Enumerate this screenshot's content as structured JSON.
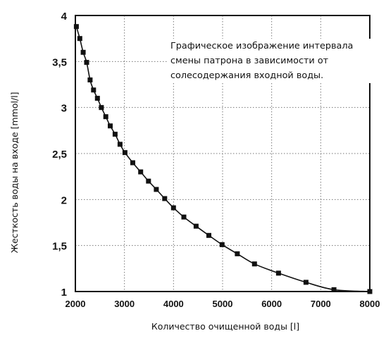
{
  "chart_data": {
    "type": "line",
    "title": "",
    "annotation": "Графическое изображение интервала смены патрона в зависимости от солесодержания входной воды.",
    "xlabel": "Количество очищенной воды [l]",
    "ylabel": "Жесткость воды на входе [mmol/l]",
    "xlim": [
      2000,
      8000
    ],
    "ylim": [
      1,
      4
    ],
    "x_ticks": [
      2000,
      3000,
      4000,
      5000,
      6000,
      7000,
      8000
    ],
    "x_tick_labels": [
      "2000",
      "3000",
      "4000",
      "5000",
      "6000",
      "7000",
      "8000"
    ],
    "y_ticks": [
      1,
      1.5,
      2,
      2.5,
      3,
      3.5,
      4
    ],
    "y_tick_labels": [
      "1",
      "1,5",
      "2",
      "2,5",
      "3",
      "3,5",
      "4"
    ],
    "grid": "dotted",
    "series": [
      {
        "marker": "square",
        "x": [
          2020,
          2090,
          2160,
          2230,
          2300,
          2370,
          2450,
          2530,
          2620,
          2710,
          2810,
          2910,
          3010,
          3170,
          3330,
          3490,
          3650,
          3820,
          4000,
          4210,
          4460,
          4720,
          4990,
          5300,
          5650,
          6140,
          6700,
          7270,
          8000
        ],
        "y": [
          3.88,
          3.75,
          3.6,
          3.49,
          3.3,
          3.19,
          3.1,
          3.0,
          2.9,
          2.8,
          2.71,
          2.6,
          2.51,
          2.4,
          2.3,
          2.2,
          2.11,
          2.01,
          1.91,
          1.81,
          1.71,
          1.61,
          1.51,
          1.41,
          1.3,
          1.2,
          1.1,
          1.02,
          1.0
        ]
      }
    ]
  }
}
